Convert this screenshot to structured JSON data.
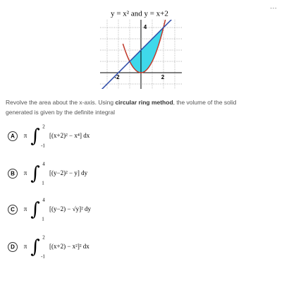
{
  "figure": {
    "title": "y = x² and y = x+2",
    "tick_labels": {
      "x_neg": "-2",
      "x_pos": "2",
      "y_top": "4"
    }
  },
  "question": {
    "text_before": "Revolve the area about the x-axis. Using ",
    "emphasis": "circular ring method",
    "text_after": ", the volume of the solid generated is given by the definite integral"
  },
  "options": [
    {
      "letter": "A",
      "prefix": "π",
      "sign": "∫",
      "upper": "2",
      "lower": "-1",
      "integrand": "[(x+2)² − x⁴] dx"
    },
    {
      "letter": "B",
      "prefix": "π",
      "sign": "∫",
      "upper": "4",
      "lower": "1",
      "integrand": "[(y−2)² − y] dy"
    },
    {
      "letter": "C",
      "prefix": "π",
      "sign": "∫",
      "upper": "4",
      "lower": "1",
      "integrand": "[(y−2) − √y]² dy"
    },
    {
      "letter": "D",
      "prefix": "π",
      "sign": "∫",
      "upper": "2",
      "lower": "-1",
      "integrand": "[(x+2) − x²]² dx"
    }
  ]
}
